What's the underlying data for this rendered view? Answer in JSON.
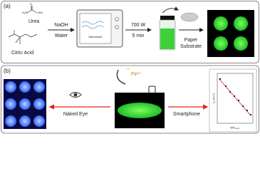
{
  "panel_a": {
    "label": "(a)",
    "reagents": [
      "Urea",
      "Citric Acid"
    ],
    "step1": [
      "NaOH",
      "Water"
    ],
    "device": "Microwave",
    "step2": [
      "700 W",
      "5 min"
    ],
    "step3": [
      "Paper",
      "Substrate"
    ]
  },
  "panel_b": {
    "label": "(b)",
    "ion": "Fe³⁺",
    "left_step": "Naked Eye",
    "right_step": "Smartphone",
    "plot": {
      "y_label": {
        "symbol": "I",
        "subscript": "G",
        "unit": "(a.u.)"
      },
      "x_label": {
        "symbol": "lgC",
        "subscript": "Fe3+"
      }
    }
  }
}
